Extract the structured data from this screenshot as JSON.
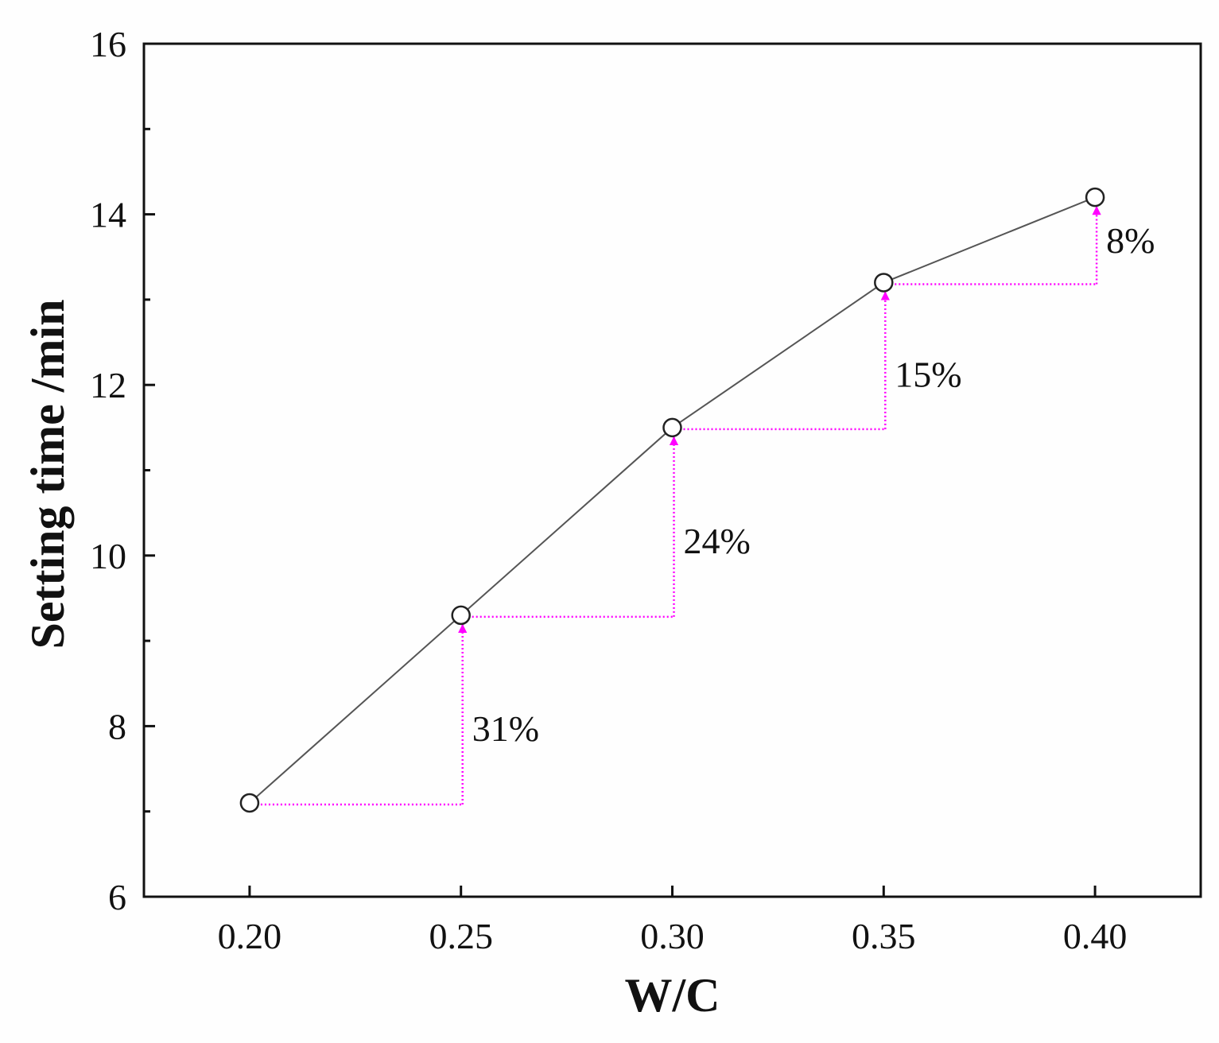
{
  "chart_data": {
    "type": "line",
    "xlabel": "W/C",
    "ylabel": "Setting time /min",
    "xlim": [
      0.175,
      0.425
    ],
    "ylim": [
      6,
      16
    ],
    "xticks": [
      "0.20",
      "0.25",
      "0.30",
      "0.35",
      "0.40"
    ],
    "xtick_values": [
      0.2,
      0.25,
      0.3,
      0.35,
      0.4
    ],
    "yticks": [
      "6",
      "8",
      "10",
      "12",
      "14",
      "16"
    ],
    "ytick_values": [
      6,
      8,
      10,
      12,
      14,
      16
    ],
    "y_minor_step": 1,
    "grid": false,
    "series": [
      {
        "x": [
          0.2,
          0.25,
          0.3,
          0.35,
          0.4
        ],
        "y": [
          7.1,
          9.3,
          11.5,
          13.2,
          14.2
        ]
      }
    ],
    "annotations": [
      {
        "text": "31%",
        "from_x": 0.2,
        "at_x": 0.25
      },
      {
        "text": "24%",
        "from_x": 0.25,
        "at_x": 0.3
      },
      {
        "text": "15%",
        "from_x": 0.3,
        "at_x": 0.35
      },
      {
        "text": "8%",
        "from_x": 0.35,
        "at_x": 0.4
      }
    ],
    "colors": {
      "line": "#555555",
      "marker_fill": "#ffffff",
      "marker_stroke": "#222222",
      "arrow": "#ff00ff",
      "axis": "#111111"
    }
  }
}
